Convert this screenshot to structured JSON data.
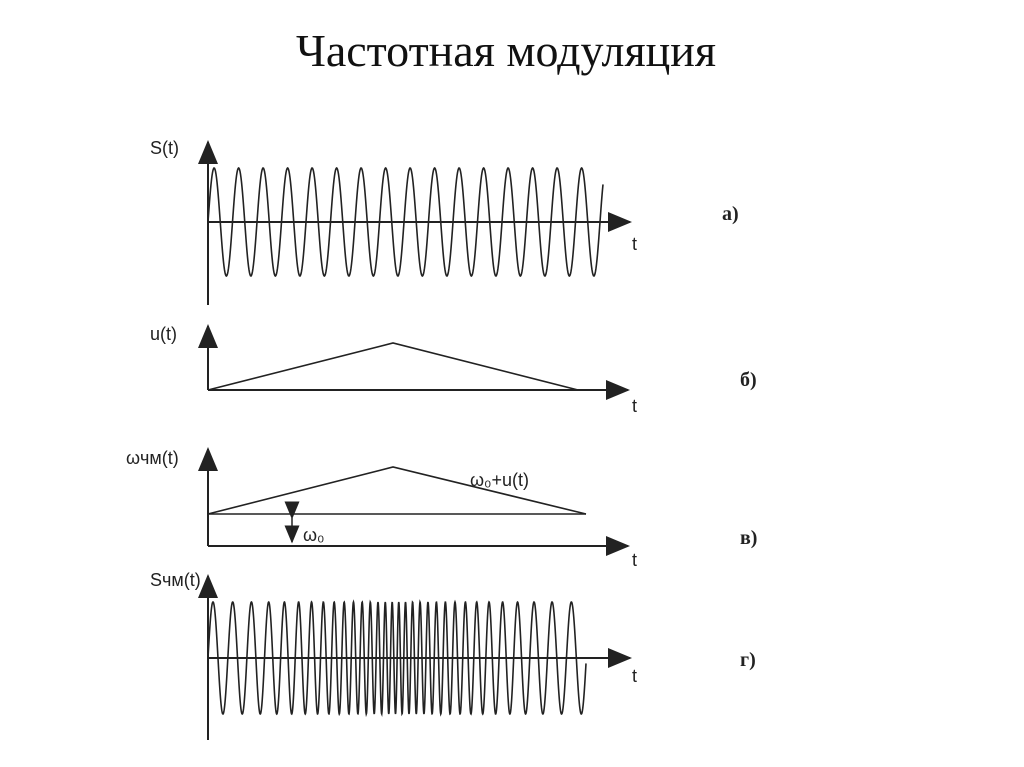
{
  "title": "Частотная модуляция",
  "panels": [
    {
      "y_label": "S(t)",
      "x_label": "t",
      "tag": "а)"
    },
    {
      "y_label": "u(t)",
      "x_label": "t",
      "tag": "б)"
    },
    {
      "y_label": "ωчм(t)",
      "x_label": "t",
      "tag": "в)",
      "curve_label": "ω₀+u(t)",
      "offset_label": "ω₀"
    },
    {
      "y_label": "Sчм(t)",
      "x_label": "t",
      "tag": "г)"
    }
  ]
}
